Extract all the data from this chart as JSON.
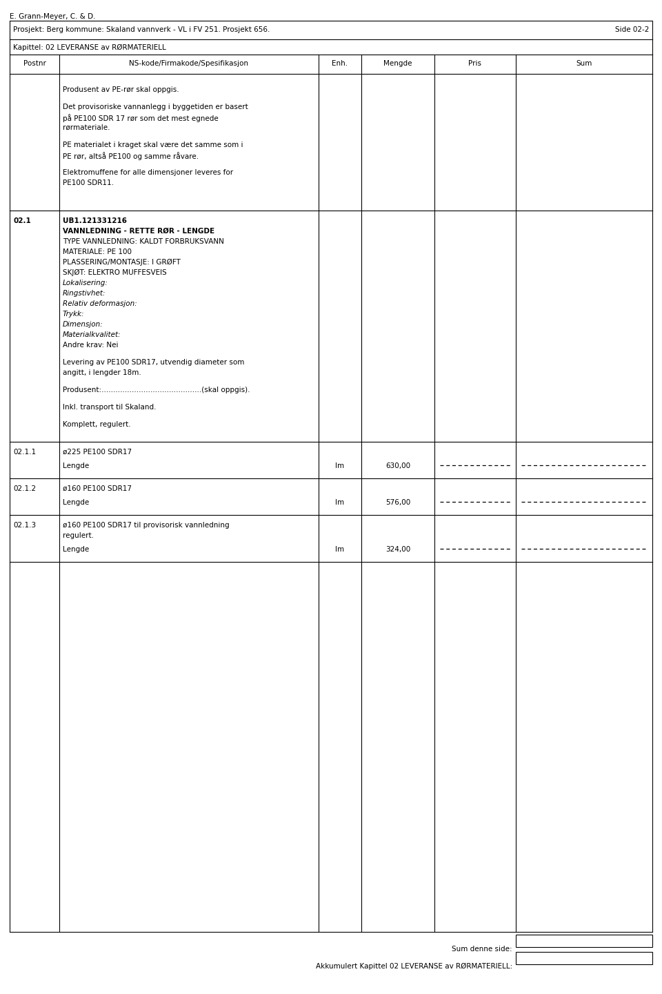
{
  "page_title": "E. Grann-Meyer, C. & D.",
  "project_line": "Prosjekt: Berg kommune: Skaland vannverk - VL i FV 251. Prosjekt 656.",
  "page_number": "Side 02-2",
  "chapter_line": "Kapittel: 02 LEVERANSE av RØRMATERIELL",
  "col_headers": [
    "Postnr",
    "NS-kode/Firmakode/Spesifikasjon",
    "Enh.",
    "Mengde",
    "Pris",
    "Sum"
  ],
  "intro_paragraphs": [
    "Produsent av PE-rør skal oppgis.",
    "Det provisoriske vannanlegg i byggetiden er basert\npå PE100 SDR 17 rør som det mest egnede\nrørmateriale.",
    "PE materialet i kraget skal være det samme som i\nPE rør, altså PE100 og samme råvare.",
    "Elektromuffene for alle dimensjoner leveres for\nPE100 SDR11."
  ],
  "section_021_postnr": "02.1",
  "section_021_lines": [
    [
      "bold",
      "UB1.121331216"
    ],
    [
      "bold",
      "VANNLEDNING - RETTE RØR - LENGDE"
    ],
    [
      "normal",
      "TYPE VANNLEDNING: KALDT FORBRUKSVANN"
    ],
    [
      "normal",
      "MATERIALE: PE 100"
    ],
    [
      "normal",
      "PLASSERING/MONTASJE: I GRØFT"
    ],
    [
      "normal",
      "SKJØT: ELEKTRO MUFFESVEIS"
    ],
    [
      "italic",
      "Lokalisering:"
    ],
    [
      "italic",
      "Ringstivhet:"
    ],
    [
      "italic",
      "Relativ deformasjon:"
    ],
    [
      "italic",
      "Trykk:"
    ],
    [
      "italic",
      "Dimensjon:"
    ],
    [
      "italic",
      "Materialkvalitet:"
    ],
    [
      "normal",
      "Andre krav: Nei"
    ]
  ],
  "section_021_extra": [
    "Levering av PE100 SDR17, utvendig diameter som\nangitt, i lengder 18m.",
    "Produsent:...........................................(skal oppgis).",
    "Inkl. transport til Skaland.",
    "Komplett, regulert."
  ],
  "sub_sections": [
    {
      "postnr": "02.1.1",
      "desc": "ø225 PE100 SDR17",
      "sub_desc": "Lengde",
      "enh": "lm",
      "mengde": "630,00"
    },
    {
      "postnr": "02.1.2",
      "desc": "ø160 PE100 SDR17",
      "sub_desc": "Lengde",
      "enh": "lm",
      "mengde": "576,00"
    },
    {
      "postnr": "02.1.3",
      "desc": "ø160 PE100 SDR17 til provisorisk vannledning\nregulert.",
      "sub_desc": "Lengde",
      "enh": "lm",
      "mengde": "324,00"
    }
  ],
  "footer_lines": [
    "Sum denne side:",
    "Akkumulert Kapittel 02 LEVERANSE av RØRMATERIELL:"
  ],
  "bg_color": "#ffffff",
  "text_color": "#000000",
  "border_color": "#000000",
  "font_size": 7.5
}
